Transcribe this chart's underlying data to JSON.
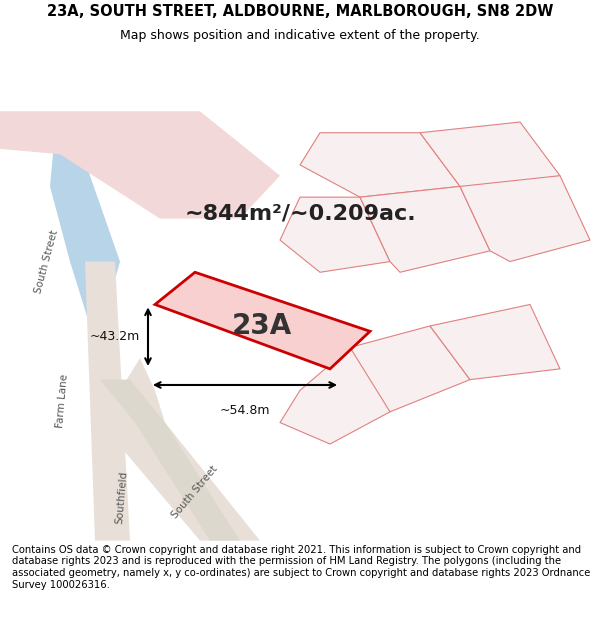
{
  "title_line1": "23A, SOUTH STREET, ALDBOURNE, MARLBOROUGH, SN8 2DW",
  "title_line2": "Map shows position and indicative extent of the property.",
  "area_text": "~844m²/~0.209ac.",
  "label_text": "23A",
  "dim_width": "~54.8m",
  "dim_height": "~43.2m",
  "footer": "Contains OS data © Crown copyright and database right 2021. This information is subject to Crown copyright and database rights 2023 and is reproduced with the permission of HM Land Registry. The polygons (including the associated geometry, namely x, y co-ordinates) are subject to Crown copyright and database rights 2023 Ordnance Survey 100026316.",
  "bg_color": "#f0ece4",
  "map_bg": "#f0ece4",
  "road_color_blue": "#a8c8e0",
  "road_color_light": "#e8e0d8",
  "plot_outline_color": "#cc0000",
  "plot_fill_color": "#f5c0c0",
  "road_fill_pink": "#f0c8c8",
  "footer_bg": "#ffffff",
  "title_bg": "#ffffff"
}
